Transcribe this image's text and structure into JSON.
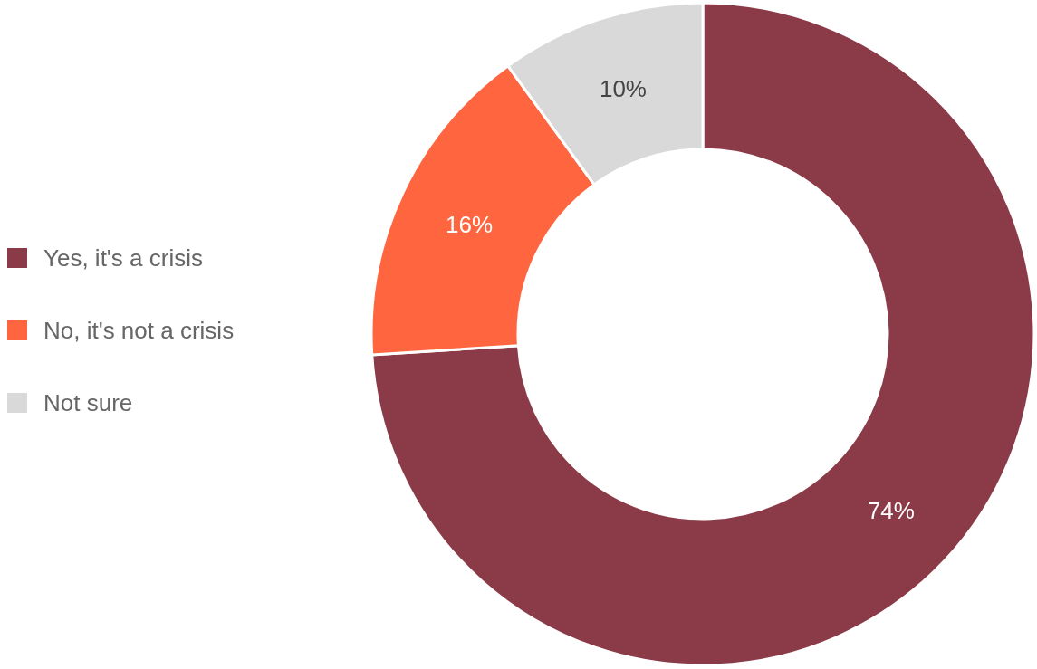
{
  "chart_data": {
    "type": "donut",
    "categories": [
      "Yes, it's a crisis",
      "No, it's not a crisis",
      "Not sure"
    ],
    "values": [
      74,
      16,
      10
    ],
    "colors": [
      "#8b3a48",
      "#ff6640",
      "#d9d9d9"
    ],
    "value_labels": [
      "74%",
      "16%",
      "10%"
    ],
    "legend": "left"
  }
}
